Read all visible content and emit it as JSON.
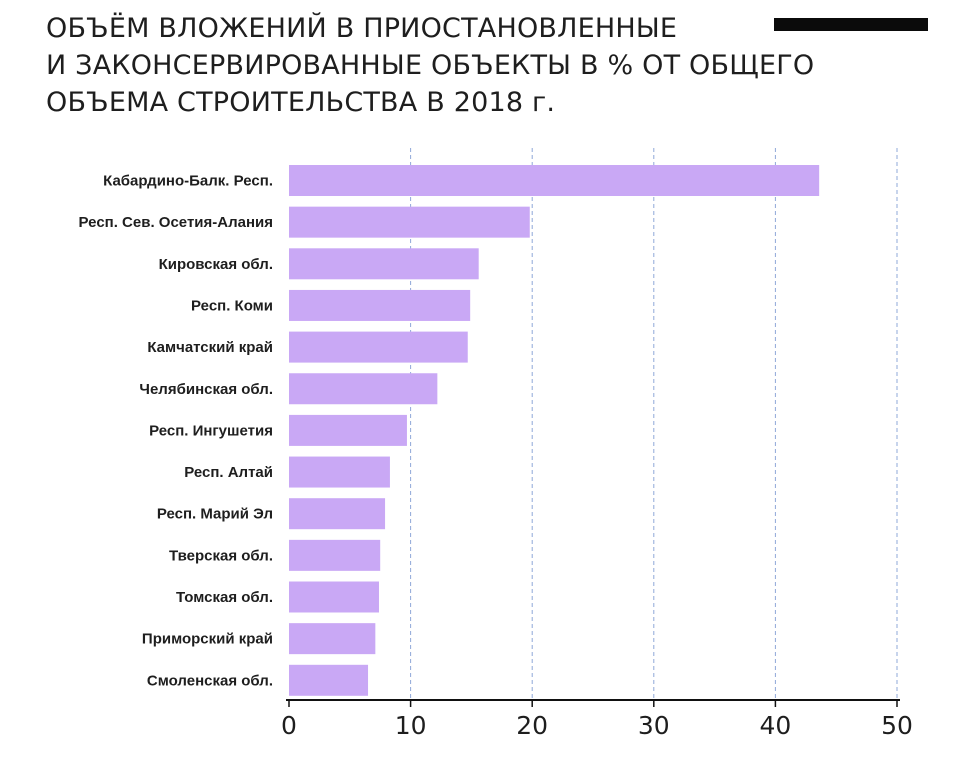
{
  "title_lines": [
    "ОБЪЁМ ВЛОЖЕНИЙ В ПРИОСТАНОВЛЕННЫЕ",
    "И ЗАКОНСЕРВИРОВАННЫЕ ОБЪЕКТЫ В % ОТ ОБЩЕГО",
    "ОБЪЕМА СТРОИТЕЛЬСТВА В 2018 г."
  ],
  "colors": {
    "bar": "#c9a8f5",
    "grid": "#8fa8d8",
    "title_bar": "#0b0b0b"
  },
  "chart_data": {
    "type": "bar",
    "orientation": "horizontal",
    "title": "ОБЪЁМ ВЛОЖЕНИЙ В ПРИОСТАНОВЛЕННЫЕ И ЗАКОНСЕРВИРОВАННЫЕ ОБЪЕКТЫ В % ОТ ОБЩЕГО ОБЪЕМА СТРОИТЕЛЬСТВА В 2018 г.",
    "categories": [
      "Кабардино-Балк. Респ.",
      "Респ. Сев. Осетия-Алания",
      "Кировская обл.",
      "Респ. Коми",
      "Камчатский край",
      "Челябинская обл.",
      "Респ. Ингушетия",
      "Респ. Алтай",
      "Респ. Марий Эл",
      "Тверская обл.",
      "Томская обл.",
      "Приморский край",
      "Смоленская обл."
    ],
    "values": [
      43.6,
      19.8,
      15.6,
      14.9,
      14.7,
      12.2,
      9.7,
      8.3,
      7.9,
      7.5,
      7.4,
      7.1,
      6.5
    ],
    "xlim": [
      0,
      50
    ],
    "xticks": [
      0,
      10,
      20,
      30,
      40,
      50
    ],
    "grid": true,
    "legend": "none"
  }
}
